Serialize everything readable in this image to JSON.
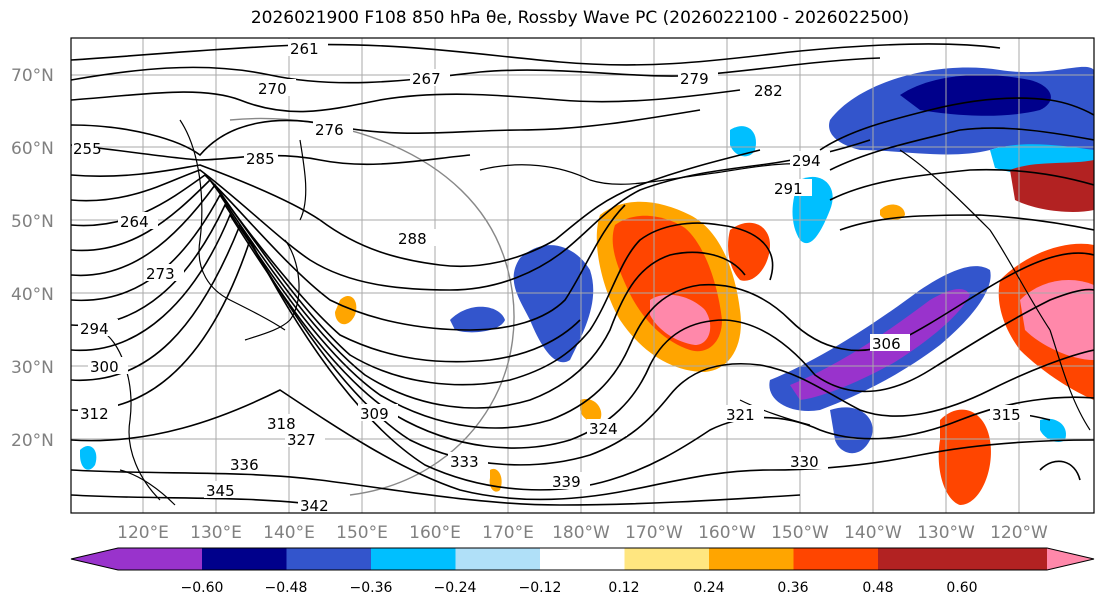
{
  "title": "2026021900 F108 850 hPa θe, Rossby Wave PC (2026022100 - 2026022500)",
  "lat_labels": [
    "70°N",
    "60°N",
    "50°N",
    "40°N",
    "30°N",
    "20°N"
  ],
  "lon_labels": [
    "120°E",
    "130°E",
    "140°E",
    "150°E",
    "160°E",
    "170°E",
    "180°W",
    "170°W",
    "160°W",
    "150°W",
    "140°W",
    "130°W",
    "120°W"
  ],
  "colorbar": {
    "ticks": [
      "−0.60",
      "−0.48",
      "−0.36",
      "−0.24",
      "−0.12",
      "0.12",
      "0.24",
      "0.36",
      "0.48",
      "0.60"
    ],
    "colors": [
      "#9933cc",
      "#00008b",
      "#3355cc",
      "#00bfff",
      "#b0e0f8",
      "#ffffff",
      "#ffe680",
      "#ffa500",
      "#ff4500",
      "#b22222",
      "#ff88aa"
    ]
  },
  "contour_labels": [
    "261",
    "267",
    "270",
    "276",
    "279",
    "282",
    "264",
    "255",
    "285",
    "288",
    "291",
    "294",
    "273",
    "294",
    "300",
    "306",
    "309",
    "312",
    "315",
    "318",
    "321",
    "324",
    "327",
    "330",
    "333",
    "336",
    "339",
    "342",
    "345"
  ]
}
